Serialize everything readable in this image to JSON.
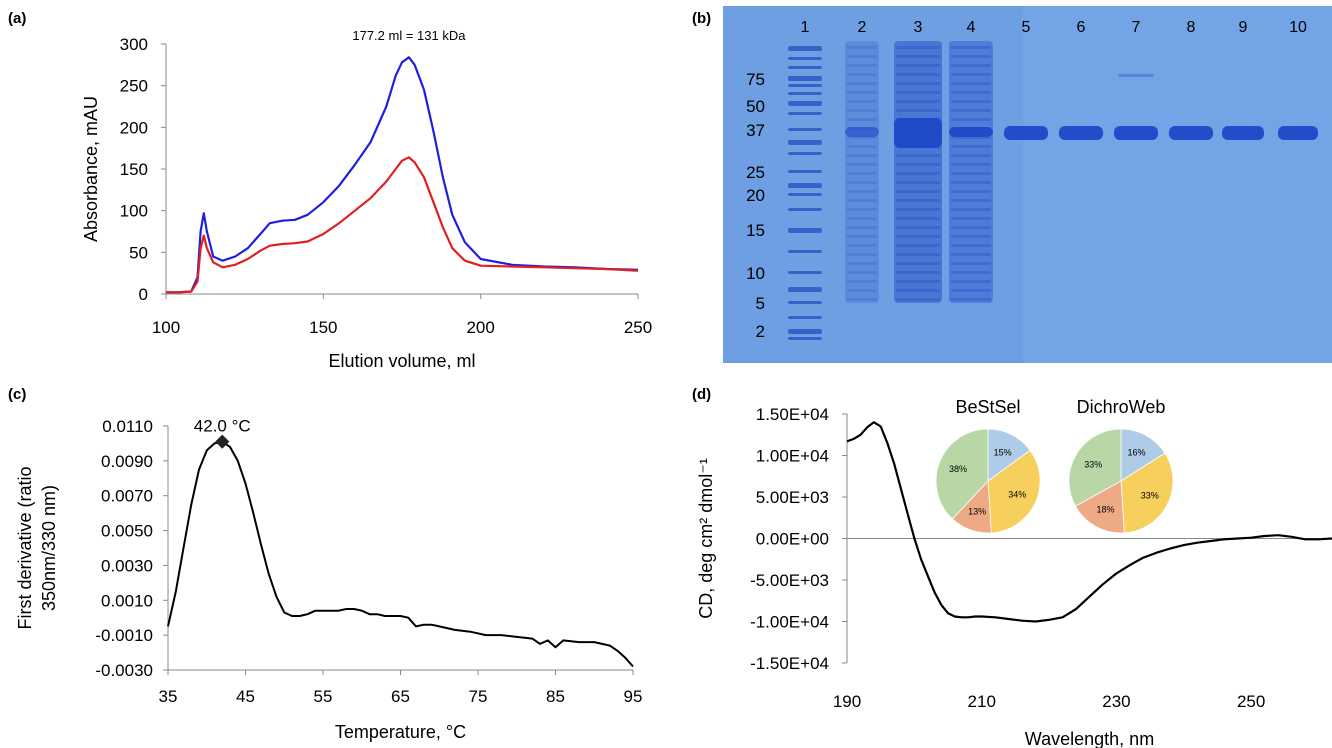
{
  "panels": {
    "a": "(a)",
    "b": "(b)",
    "c": "(c)",
    "d": "(d)"
  },
  "chart_data": [
    {
      "id": "a",
      "type": "line",
      "title": "",
      "xlabel": "Elution volume, ml",
      "ylabel": "Absorbance, mAU",
      "xlim": [
        100,
        250
      ],
      "ylim": [
        0,
        300
      ],
      "xticks": [
        "100",
        "150",
        "200",
        "250"
      ],
      "yticks": [
        "0",
        "50",
        "100",
        "150",
        "200",
        "250",
        "300"
      ],
      "annotation": "177.2 ml = 131 kDa",
      "grid": false,
      "series": [
        {
          "color": "#1f1fe0",
          "x": [
            100,
            104,
            108,
            110,
            111,
            112,
            113,
            115,
            118,
            122,
            126,
            130,
            133,
            137,
            141,
            145,
            150,
            155,
            160,
            165,
            170,
            173,
            175,
            177.2,
            179,
            182,
            185,
            188,
            191,
            195,
            200,
            210,
            220,
            230,
            240,
            250
          ],
          "values": [
            2,
            2,
            3,
            20,
            75,
            97,
            75,
            45,
            40,
            45,
            55,
            72,
            85,
            88,
            89,
            95,
            110,
            130,
            155,
            182,
            225,
            262,
            278,
            284,
            275,
            245,
            195,
            140,
            95,
            62,
            42,
            35,
            33,
            32,
            30,
            29
          ]
        },
        {
          "color": "#e01f1f",
          "x": [
            100,
            104,
            108,
            110,
            111,
            112,
            113,
            115,
            118,
            122,
            126,
            130,
            133,
            137,
            141,
            145,
            150,
            155,
            160,
            165,
            170,
            173,
            175,
            177.2,
            179,
            182,
            185,
            188,
            191,
            195,
            200,
            210,
            220,
            230,
            240,
            250
          ],
          "values": [
            2,
            2,
            3,
            15,
            55,
            70,
            55,
            38,
            32,
            35,
            42,
            52,
            58,
            60,
            61,
            63,
            72,
            85,
            100,
            115,
            135,
            150,
            160,
            164,
            158,
            140,
            110,
            80,
            55,
            40,
            34,
            33,
            32,
            31,
            30,
            28
          ]
        }
      ]
    },
    {
      "id": "b",
      "type": "gel",
      "lanes": [
        "1",
        "2",
        "3",
        "4",
        "5",
        "6",
        "7",
        "8",
        "9",
        "10"
      ],
      "markers": [
        "75",
        "50",
        "37",
        "25",
        "20",
        "15",
        "10",
        "5",
        "2"
      ]
    },
    {
      "id": "c",
      "type": "line",
      "title": "",
      "xlabel": "Temperature, °C",
      "ylabel": "First derivative (ratio 350nm/330 nm)",
      "xlim": [
        35,
        95
      ],
      "ylim": [
        -0.003,
        0.011
      ],
      "xticks": [
        "35",
        "45",
        "55",
        "65",
        "75",
        "85",
        "95"
      ],
      "yticks": [
        "-0.0030",
        "-0.0010",
        "0.0010",
        "0.0030",
        "0.0050",
        "0.0070",
        "0.0090",
        "0.0110"
      ],
      "annotation": "42.0 °C",
      "peak": {
        "x": 42.0,
        "y": 0.0101
      },
      "grid": false,
      "series": [
        {
          "color": "#000000",
          "x": [
            35,
            36,
            37,
            38,
            39,
            40,
            41,
            42,
            43,
            44,
            45,
            46,
            47,
            48,
            49,
            50,
            51,
            52,
            53,
            54,
            55,
            56,
            57,
            58,
            59,
            60,
            61,
            62,
            63,
            64,
            65,
            66,
            67,
            68,
            69,
            70,
            72,
            74,
            76,
            78,
            80,
            82,
            83,
            84,
            85,
            86,
            88,
            90,
            92,
            93,
            94,
            95
          ],
          "values": [
            -0.0005,
            0.0015,
            0.004,
            0.0065,
            0.0085,
            0.0096,
            0.01,
            0.0101,
            0.0098,
            0.009,
            0.0077,
            0.006,
            0.0042,
            0.0025,
            0.0012,
            0.0003,
            0.0001,
            0.0001,
            0.0002,
            0.0004,
            0.0004,
            0.0004,
            0.0004,
            0.0005,
            0.0005,
            0.0004,
            0.0002,
            0.0002,
            0.0001,
            0.0001,
            0.0001,
            0,
            -0.0005,
            -0.0004,
            -0.0004,
            -0.0005,
            -0.0007,
            -0.0008,
            -0.001,
            -0.001,
            -0.0011,
            -0.0012,
            -0.0015,
            -0.0013,
            -0.0017,
            -0.0013,
            -0.0014,
            -0.0014,
            -0.0016,
            -0.0019,
            -0.0023,
            -0.0028
          ]
        }
      ]
    },
    {
      "id": "d",
      "type": "line",
      "title": "",
      "xlabel": "Wavelength, nm",
      "ylabel": "CD, deg cm² dmol⁻¹",
      "xlim": [
        190,
        262
      ],
      "ylim": [
        -15000,
        15000
      ],
      "xticks": [
        "190",
        "210",
        "230",
        "250"
      ],
      "yticks": [
        "-1.50E+04",
        "-1.00E+04",
        "-5.00E+03",
        "0.00E+00",
        "5.00E+03",
        "1.00E+04",
        "1.50E+04"
      ],
      "grid": false,
      "series": [
        {
          "color": "#000000",
          "x": [
            190,
            191,
            192,
            193,
            194,
            195,
            196,
            197,
            198,
            199,
            200,
            201,
            202,
            203,
            204,
            205,
            206,
            207,
            208,
            209,
            210,
            212,
            214,
            216,
            218,
            220,
            222,
            224,
            226,
            228,
            230,
            232,
            234,
            236,
            238,
            240,
            242,
            244,
            246,
            248,
            250,
            252,
            254,
            256,
            258,
            260,
            262
          ],
          "values": [
            11700,
            12000,
            12500,
            13400,
            14000,
            13500,
            11500,
            9000,
            6000,
            3000,
            0,
            -2500,
            -4500,
            -6500,
            -8000,
            -9000,
            -9400,
            -9500,
            -9500,
            -9400,
            -9400,
            -9500,
            -9700,
            -9900,
            -10000,
            -9800,
            -9500,
            -8500,
            -7000,
            -5500,
            -4200,
            -3200,
            -2300,
            -1700,
            -1200,
            -800,
            -500,
            -300,
            -100,
            0,
            100,
            300,
            400,
            200,
            -100,
            -100,
            0
          ]
        }
      ],
      "pies": [
        {
          "title": "BeStSel",
          "slices": [
            {
              "value": 15,
              "label": "15%",
              "color": "#aecbe8"
            },
            {
              "value": 34,
              "label": "34%",
              "color": "#f7cf5c"
            },
            {
              "value": 13,
              "label": "13%",
              "color": "#eeaa84"
            },
            {
              "value": 38,
              "label": "38%",
              "color": "#b9d7a6"
            }
          ]
        },
        {
          "title": "DichroWeb",
          "slices": [
            {
              "value": 16,
              "label": "16%",
              "color": "#aecbe8"
            },
            {
              "value": 33,
              "label": "33%",
              "color": "#f7cf5c"
            },
            {
              "value": 18,
              "label": "18%",
              "color": "#eeaa84"
            },
            {
              "value": 33,
              "label": "33%",
              "color": "#b9d7a6"
            }
          ]
        }
      ]
    }
  ]
}
